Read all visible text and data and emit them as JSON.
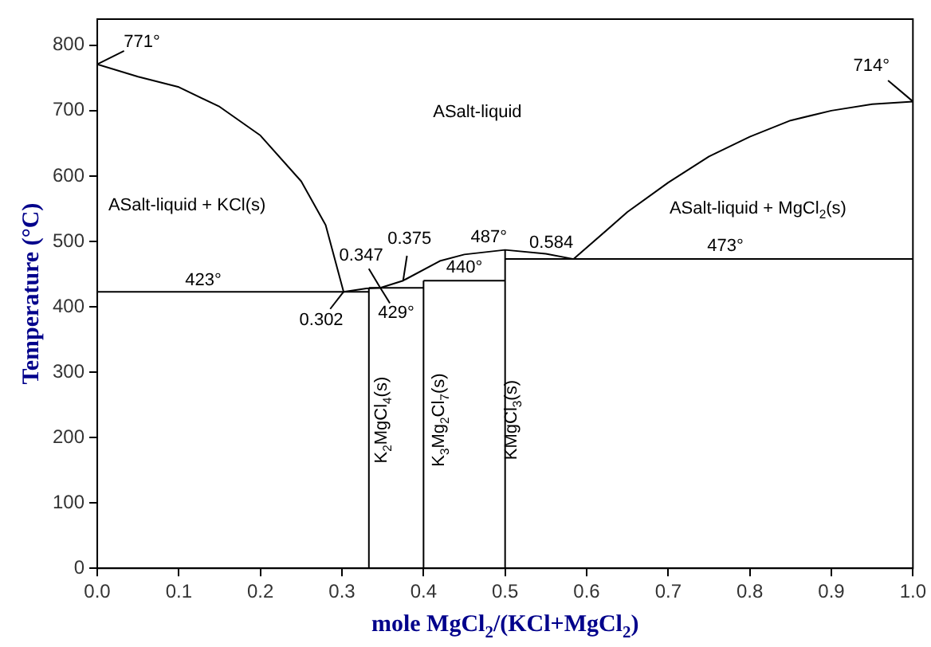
{
  "chart_data": {
    "type": "line",
    "xlabel": "mole MgCl$_{2}$/(KCl+MgCl$_{2}$)",
    "ylabel": "Temperature (°C)",
    "series": [
      {
        "color": "#000000",
        "x": [
          0,
          0.05,
          0.1,
          0.15,
          0.2,
          0.25,
          0.28,
          0.302
        ],
        "values": [
          771,
          752,
          736,
          706,
          662,
          592,
          525,
          423
        ]
      },
      {
        "color": "#000000",
        "x": [
          0.302,
          0.33,
          0.347,
          0.375,
          0.42,
          0.45,
          0.5,
          0.55,
          0.584
        ],
        "values": [
          423,
          428,
          429,
          440,
          470,
          480,
          487,
          481,
          473
        ]
      },
      {
        "color": "#000000",
        "x": [
          0.584,
          0.65,
          0.7,
          0.75,
          0.8,
          0.85,
          0.9,
          0.95,
          1
        ],
        "values": [
          473,
          545,
          590,
          630,
          660,
          685,
          700,
          710,
          714
        ]
      },
      {
        "color": "#000000",
        "x": [
          0,
          0.333
        ],
        "values": [
          423,
          423
        ]
      },
      {
        "color": "#000000",
        "x": [
          0.333,
          0.4
        ],
        "values": [
          429,
          429
        ]
      },
      {
        "color": "#000000",
        "x": [
          0.4,
          0.5
        ],
        "values": [
          440,
          440
        ]
      },
      {
        "color": "#000000",
        "x": [
          0.5,
          1
        ],
        "values": [
          473,
          473
        ]
      },
      {
        "color": "#000000",
        "x": [
          0.333,
          0.333
        ],
        "values": [
          0,
          429
        ]
      },
      {
        "color": "#000000",
        "x": [
          0.4,
          0.4
        ],
        "values": [
          0,
          440
        ]
      },
      {
        "color": "#000000",
        "x": [
          0.5,
          0.5
        ],
        "values": [
          0,
          487
        ]
      }
    ],
    "annotations": [
      {
        "text": "771°",
        "x": 0,
        "y": 771
      },
      {
        "text": "714°",
        "x": 1,
        "y": 714
      },
      {
        "text": "423°",
        "x": 0.13,
        "y": 423
      },
      {
        "text": "429°",
        "x": 0.347,
        "y": 429
      },
      {
        "text": "440°",
        "x": 0.45,
        "y": 440
      },
      {
        "text": "487°",
        "x": 0.48,
        "y": 487
      },
      {
        "text": "473°",
        "x": 0.77,
        "y": 473
      },
      {
        "text": "0.302",
        "x": 0.302,
        "y": 423
      },
      {
        "text": "0.347",
        "x": 0.347,
        "y": 429
      },
      {
        "text": "0.375",
        "x": 0.375,
        "y": 440
      },
      {
        "text": "0.584",
        "x": 0.584,
        "y": 473
      },
      "ASalt-liquid",
      "ASalt-liquid + KCl(s)",
      "ASalt-liquid + MgCl$_{2}$(s)",
      "K$_{2}$MgCl$_{4}$(s)",
      "K$_{3}$Mg$_{2}$Cl$_{7}$(s)",
      "KMgCl$_{3}$(s)"
    ],
    "xlim": [
      0,
      1
    ],
    "ylim": [
      0,
      840
    ],
    "xticks": [
      {
        "value": 0,
        "label": "0.0"
      },
      0.1,
      0.2,
      0.3,
      0.4,
      0.5,
      0.6,
      0.7,
      0.8,
      0.9,
      {
        "value": 1,
        "label": "1.0"
      }
    ],
    "yticks": [
      0,
      100,
      200,
      300,
      400,
      500,
      600,
      700,
      800
    ],
    "grid": false,
    "legend": false,
    "marker": "none",
    "line_style": "solid"
  }
}
